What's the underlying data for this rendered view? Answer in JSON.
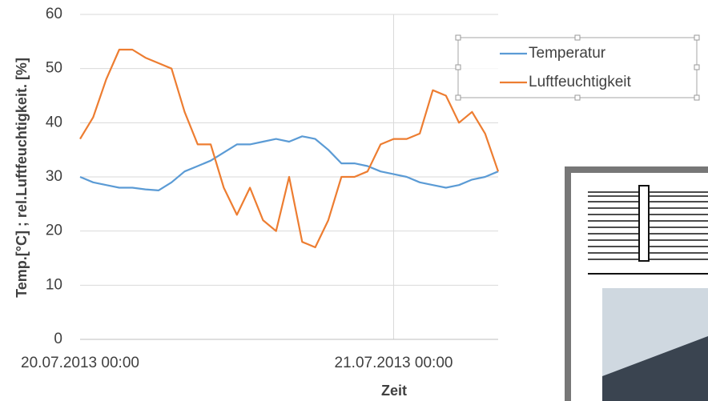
{
  "chart_data": {
    "type": "line",
    "y_label": "Temp.[°C] ; rel.Luftfeuchtigkeit. [%]",
    "x_label": "Zeit",
    "x": [
      "20.07.2013 00:00",
      "20.07.2013 01:00",
      "20.07.2013 02:00",
      "20.07.2013 03:00",
      "20.07.2013 04:00",
      "20.07.2013 05:00",
      "20.07.2013 06:00",
      "20.07.2013 07:00",
      "20.07.2013 08:00",
      "20.07.2013 09:00",
      "20.07.2013 10:00",
      "20.07.2013 11:00",
      "20.07.2013 12:00",
      "20.07.2013 13:00",
      "20.07.2013 14:00",
      "20.07.2013 15:00",
      "20.07.2013 16:00",
      "20.07.2013 17:00",
      "20.07.2013 18:00",
      "20.07.2013 19:00",
      "20.07.2013 20:00",
      "20.07.2013 21:00",
      "20.07.2013 22:00",
      "20.07.2013 23:00",
      "21.07.2013 00:00",
      "21.07.2013 01:00",
      "21.07.2013 02:00",
      "21.07.2013 03:00",
      "21.07.2013 04:00",
      "21.07.2013 05:00",
      "21.07.2013 06:00",
      "21.07.2013 07:00",
      "21.07.2013 08:00"
    ],
    "series": [
      {
        "name": "Temperatur",
        "color": "#5b9bd5",
        "values": [
          30,
          29,
          28.5,
          28,
          28,
          27.7,
          27.5,
          29,
          31,
          32,
          33,
          34.5,
          36,
          36,
          36.5,
          37,
          36.5,
          37.5,
          37,
          35,
          32.5,
          32.5,
          32,
          31,
          30.5,
          30,
          29,
          28.5,
          28,
          28.5,
          29.5,
          30,
          31
        ]
      },
      {
        "name": "Luftfeuchtigkeit",
        "color": "#ed7d31",
        "values": [
          37,
          41,
          48,
          53.5,
          53.5,
          52,
          51,
          50,
          42,
          36,
          36,
          28,
          23,
          28,
          22,
          20,
          30,
          18,
          17,
          22,
          30,
          30,
          31,
          36,
          37,
          37,
          38,
          46,
          45,
          40,
          42,
          38,
          31
        ]
      }
    ],
    "xlim": [
      "20.07.2013 00:00",
      "21.07.2013 08:00"
    ],
    "xticks": [
      "20.07.2013 00:00",
      "21.07.2013 00:00"
    ],
    "ylim": [
      0,
      60
    ],
    "yticks": [
      0,
      10,
      20,
      30,
      40,
      50,
      60
    ],
    "grid": true,
    "legend": "upper right"
  }
}
